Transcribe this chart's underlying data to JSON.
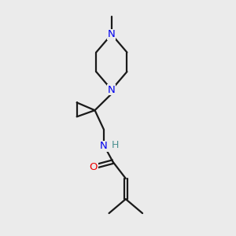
{
  "background_color": "#ebebeb",
  "bond_color": "#1a1a1a",
  "N_color": "#0000ee",
  "O_color": "#ee0000",
  "H_color": "#4a9090",
  "line_width": 1.6,
  "font_size": 9.5,
  "fig_size": [
    3.0,
    3.0
  ],
  "dpi": 100,
  "xlim": [
    2.0,
    8.5
  ],
  "ylim": [
    1.5,
    10.5
  ]
}
